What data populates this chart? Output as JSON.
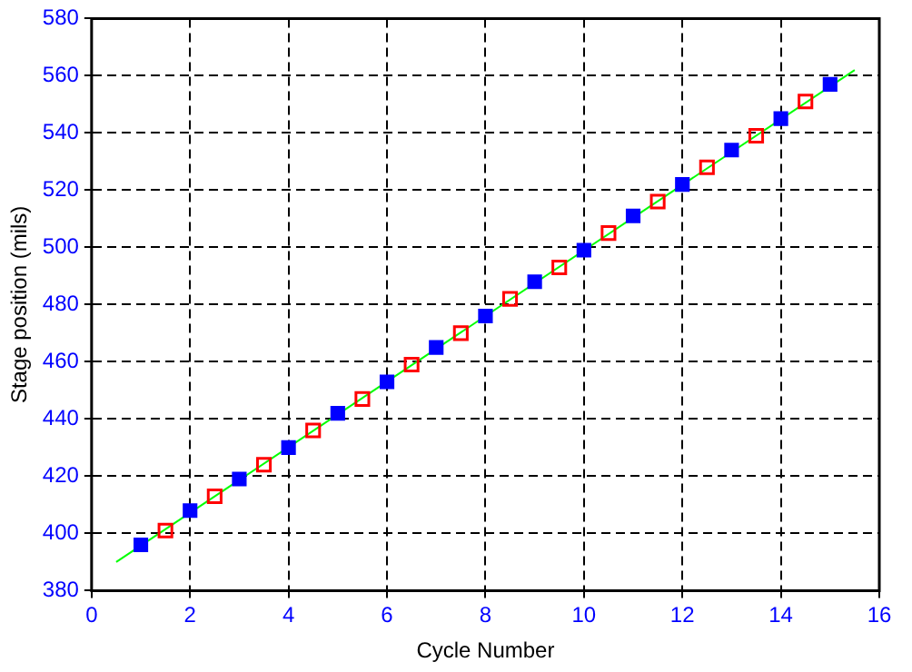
{
  "chart_data": {
    "type": "scatter",
    "xlabel": "Cycle Number",
    "ylabel": "Stage position (mils)",
    "xlim": [
      0,
      16
    ],
    "xticks": [
      0,
      2,
      4,
      6,
      8,
      10,
      12,
      14,
      16
    ],
    "ylim": [
      380,
      580
    ],
    "yticks": [
      380,
      400,
      420,
      440,
      460,
      480,
      500,
      520,
      540,
      560,
      580
    ],
    "grid": true,
    "legend": false,
    "marker": "square",
    "series": [
      {
        "color": "#0000ff",
        "x": [
          1,
          2,
          3,
          4,
          5,
          6,
          7,
          8,
          9,
          10,
          11,
          12,
          13,
          14,
          15
        ],
        "values": [
          396,
          408,
          419,
          430,
          442,
          453,
          465,
          476,
          488,
          499,
          511,
          522,
          534,
          545,
          557
        ]
      },
      {
        "color": "#ff0000",
        "x": [
          1.5,
          2.5,
          3.5,
          4.5,
          5.5,
          6.5,
          7.5,
          8.5,
          9.5,
          10.5,
          11.5,
          12.5,
          13.5,
          14.5
        ],
        "values": [
          401,
          413,
          424,
          436,
          447,
          459,
          470,
          482,
          493,
          505,
          516,
          528,
          539,
          551
        ]
      },
      {
        "type": "line",
        "marker": "none",
        "color": "#00ff00",
        "x": [
          0.5,
          15.5
        ],
        "values": [
          390,
          562
        ]
      }
    ]
  }
}
